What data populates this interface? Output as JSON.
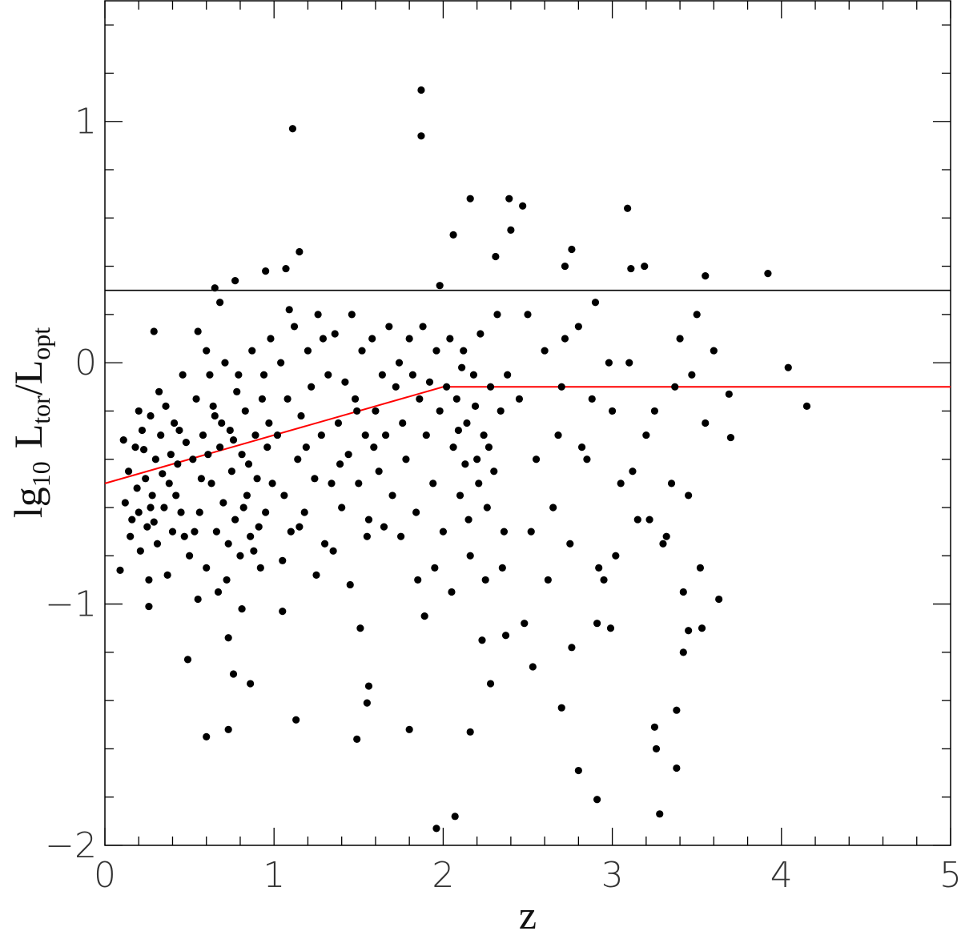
{
  "chart_data": {
    "type": "scatter",
    "xlabel": "z",
    "ylabel": [
      "lg",
      "10",
      "L",
      "tor",
      "/L",
      "opt"
    ],
    "xlim": [
      0,
      5
    ],
    "ylim": [
      -2,
      1.5
    ],
    "xticks": [
      0,
      1,
      2,
      3,
      4,
      5
    ],
    "yticks": [
      {
        "value": -2,
        "label": "−2"
      },
      {
        "value": -1,
        "label": "−1"
      },
      0,
      1
    ],
    "xminorticks": [
      0.2,
      0.4,
      0.6,
      0.8,
      1.2,
      1.4,
      1.6,
      1.8,
      2.2,
      2.4,
      2.6,
      2.8,
      3.2,
      3.4,
      3.6,
      3.8,
      4.2,
      4.4,
      4.6,
      4.8
    ],
    "yminorticks": [
      -1.8,
      -1.6,
      -1.4,
      -1.2,
      -0.8,
      -0.6,
      -0.4,
      -0.2,
      0.2,
      0.4,
      0.6,
      0.8,
      1.2,
      1.4
    ],
    "hlines": [
      {
        "y": 0.3,
        "color": "#000000"
      }
    ],
    "lines": [
      {
        "x": [
          0,
          2,
          5
        ],
        "values": [
          -0.5,
          -0.1,
          -0.1
        ],
        "color": "#ff0000"
      }
    ],
    "series": [
      {
        "color": "#000000",
        "x": [
          1.87,
          1.87,
          1.11,
          2.16,
          2.39,
          2.47,
          3.09,
          2.06,
          2.4,
          1.15,
          1.07,
          0.95,
          3.92,
          3.55,
          0.65,
          0.77,
          2.76,
          2.72,
          3.11,
          3.19,
          1.98,
          2.31,
          4.04,
          4.15,
          3.7,
          3.69,
          0.29,
          0.49,
          0.6,
          0.73,
          1.13,
          0.86,
          0.76,
          1.49,
          1.56,
          1.55,
          1.8,
          1.96,
          2.07,
          2.16,
          2.28,
          2.53,
          2.7,
          2.8,
          2.91,
          3.28,
          3.25,
          3.26,
          3.38,
          3.38,
          3.42,
          3.45,
          3.53,
          3.63,
          2.76,
          2.91,
          2.99,
          2.48,
          2.37,
          2.23,
          1.51,
          1.89,
          0.55,
          0.73,
          0.81,
          1.05,
          0.09,
          0.26,
          0.12,
          0.15,
          0.18,
          0.2,
          0.22,
          0.24,
          0.25,
          0.27,
          0.28,
          0.3,
          0.31,
          0.33,
          0.35,
          0.36,
          0.38,
          0.4,
          0.41,
          0.43,
          0.45,
          0.46,
          0.48,
          0.5,
          0.14,
          0.19,
          0.23,
          0.26,
          0.29,
          0.32,
          0.37,
          0.42,
          0.44,
          0.47,
          0.2,
          0.16,
          0.34,
          0.39,
          0.27,
          0.21,
          0.11,
          0.52,
          0.54,
          0.56,
          0.58,
          0.6,
          0.62,
          0.63,
          0.65,
          0.66,
          0.68,
          0.7,
          0.71,
          0.72,
          0.74,
          0.75,
          0.77,
          0.78,
          0.8,
          0.81,
          0.83,
          0.84,
          0.86,
          0.87,
          0.89,
          0.9,
          0.92,
          0.93,
          0.95,
          0.96,
          0.98,
          0.99,
          0.55,
          0.6,
          0.67,
          0.73,
          0.79,
          0.85,
          0.91,
          0.97,
          0.64,
          0.69,
          0.76,
          0.82,
          0.88,
          0.94,
          0.57,
          0.53,
          0.61,
          0.68,
          1.02,
          1.04,
          1.06,
          1.08,
          1.1,
          1.12,
          1.14,
          1.16,
          1.18,
          1.2,
          1.22,
          1.24,
          1.26,
          1.28,
          1.3,
          1.32,
          1.34,
          1.36,
          1.38,
          1.4,
          1.42,
          1.44,
          1.46,
          1.48,
          1.5,
          1.52,
          1.54,
          1.56,
          1.58,
          1.6,
          1.62,
          1.64,
          1.66,
          1.68,
          1.7,
          1.05,
          1.15,
          1.25,
          1.35,
          1.45,
          1.55,
          1.65,
          1.09,
          1.19,
          1.29,
          1.39,
          1.49,
          1.59,
          1.72,
          1.74,
          1.76,
          1.78,
          1.8,
          1.82,
          1.84,
          1.86,
          1.88,
          1.9,
          1.92,
          1.94,
          1.96,
          1.98,
          2.0,
          2.02,
          2.04,
          2.06,
          2.08,
          2.1,
          2.12,
          2.14,
          2.16,
          2.18,
          2.2,
          2.22,
          2.24,
          2.26,
          2.28,
          2.3,
          2.32,
          2.34,
          2.36,
          2.38,
          1.85,
          1.95,
          2.05,
          2.15,
          2.25,
          2.35,
          1.75,
          2.11,
          2.19,
          2.27,
          2.21,
          2.13,
          2.09,
          2.45,
          2.5,
          2.55,
          2.6,
          2.65,
          2.7,
          2.75,
          2.8,
          2.85,
          2.9,
          2.95,
          3.0,
          3.05,
          3.1,
          3.15,
          3.2,
          3.25,
          3.3,
          3.35,
          3.4,
          3.45,
          3.5,
          3.55,
          3.6,
          2.52,
          2.62,
          2.72,
          2.82,
          2.92,
          3.02,
          3.12,
          3.22,
          3.32,
          3.42,
          3.52,
          3.37,
          3.47,
          2.88,
          2.98,
          2.68
        ],
        "values": [
          1.13,
          0.94,
          0.97,
          0.68,
          0.68,
          0.65,
          0.64,
          0.53,
          0.55,
          0.46,
          0.39,
          0.38,
          0.37,
          0.36,
          0.31,
          0.34,
          0.47,
          0.4,
          0.39,
          0.4,
          0.32,
          0.44,
          -0.02,
          -0.18,
          -0.31,
          -0.13,
          0.13,
          -1.23,
          -1.55,
          -1.52,
          -1.48,
          -1.33,
          -1.29,
          -1.56,
          -1.34,
          -1.41,
          -1.52,
          -1.93,
          -1.88,
          -1.53,
          -1.33,
          -1.26,
          -1.43,
          -1.69,
          -1.81,
          -1.87,
          -1.51,
          -1.6,
          -1.68,
          -1.44,
          -1.2,
          -1.11,
          -1.1,
          -0.98,
          -1.18,
          -1.08,
          -1.1,
          -1.08,
          -1.13,
          -1.15,
          -1.1,
          -1.05,
          -0.98,
          -1.14,
          -1.02,
          -1.03,
          -0.86,
          -1.01,
          -0.58,
          -0.72,
          -0.35,
          -0.62,
          -0.28,
          -0.48,
          -0.68,
          -0.22,
          -0.55,
          -0.4,
          -0.75,
          -0.3,
          -0.6,
          -0.18,
          -0.5,
          -0.7,
          -0.25,
          -0.42,
          -0.62,
          -0.05,
          -0.33,
          -0.8,
          -0.45,
          -0.52,
          -0.36,
          -0.9,
          -0.66,
          -0.12,
          -0.88,
          -0.55,
          -0.28,
          -0.72,
          -0.2,
          -0.65,
          -0.46,
          -0.38,
          -0.6,
          -0.78,
          -0.32,
          -0.4,
          -0.15,
          -0.62,
          -0.3,
          -0.85,
          -0.05,
          -0.5,
          -0.22,
          -0.7,
          -0.35,
          -0.58,
          0.0,
          -0.9,
          -0.28,
          -0.45,
          -0.65,
          -0.12,
          -0.8,
          -0.38,
          -0.2,
          -0.55,
          -0.72,
          0.05,
          -0.3,
          -0.48,
          -0.85,
          -0.15,
          -0.62,
          -0.35,
          0.1,
          -0.5,
          0.13,
          0.05,
          -0.95,
          -0.75,
          -0.05,
          -0.42,
          -0.68,
          -0.25,
          -0.18,
          -0.25,
          -0.32,
          -0.6,
          -0.78,
          -0.05,
          -0.48,
          -0.7,
          -0.38,
          0.25,
          -0.3,
          0.0,
          -0.55,
          -0.15,
          -0.7,
          0.15,
          -0.4,
          -0.22,
          -0.62,
          0.05,
          -0.1,
          -0.48,
          0.2,
          -0.3,
          -0.75,
          -0.05,
          -0.5,
          0.12,
          -0.25,
          -0.6,
          -0.08,
          -0.38,
          0.2,
          -0.15,
          -0.5,
          0.05,
          -0.3,
          -0.65,
          0.1,
          -0.2,
          -0.45,
          -0.05,
          -0.3,
          0.15,
          -0.55,
          -0.82,
          -0.68,
          -0.88,
          -0.78,
          -0.92,
          -0.72,
          -0.68,
          0.22,
          -0.35,
          0.1,
          -0.42,
          -0.2,
          -0.35,
          -0.1,
          0.0,
          -0.25,
          -0.4,
          0.1,
          -0.05,
          -0.62,
          -0.15,
          0.15,
          -0.3,
          -0.08,
          -0.5,
          0.05,
          -0.2,
          -0.7,
          -0.1,
          0.1,
          -0.35,
          -0.15,
          -0.55,
          0.05,
          -0.25,
          -0.8,
          -0.05,
          -0.4,
          0.12,
          -0.3,
          -0.6,
          -0.1,
          -0.45,
          0.2,
          -0.2,
          -0.7,
          -0.05,
          -0.9,
          -0.85,
          -0.95,
          -0.65,
          -0.9,
          -0.85,
          -0.72,
          -0.02,
          -0.18,
          -0.35,
          -0.5,
          -0.42,
          -0.28,
          -0.15,
          0.2,
          -0.4,
          0.05,
          -0.6,
          -0.1,
          -0.75,
          0.15,
          -0.4,
          0.25,
          -0.9,
          -0.2,
          -0.5,
          0.0,
          -0.65,
          -0.3,
          -0.2,
          -0.75,
          -0.5,
          0.1,
          -0.55,
          0.2,
          -0.25,
          0.05,
          -0.7,
          -0.9,
          0.1,
          -0.35,
          -0.85,
          -0.8,
          -0.45,
          -0.65,
          -0.72,
          -0.95,
          -0.85,
          -0.1,
          -0.05,
          -0.15,
          0.0,
          -0.3
        ]
      }
    ]
  }
}
